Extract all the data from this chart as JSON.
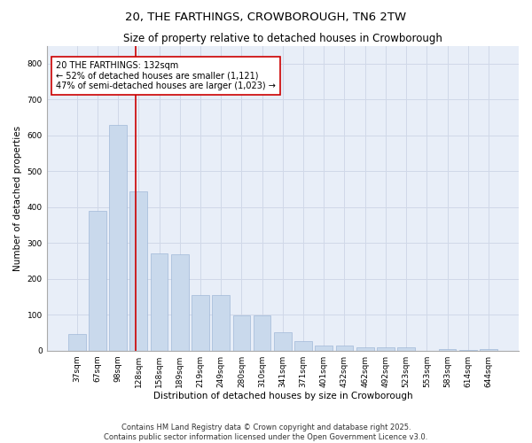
{
  "title": "20, THE FARTHINGS, CROWBOROUGH, TN6 2TW",
  "subtitle": "Size of property relative to detached houses in Crowborough",
  "xlabel": "Distribution of detached houses by size in Crowborough",
  "ylabel": "Number of detached properties",
  "categories": [
    "37sqm",
    "67sqm",
    "98sqm",
    "128sqm",
    "158sqm",
    "189sqm",
    "219sqm",
    "249sqm",
    "280sqm",
    "310sqm",
    "341sqm",
    "371sqm",
    "401sqm",
    "432sqm",
    "462sqm",
    "492sqm",
    "523sqm",
    "553sqm",
    "583sqm",
    "614sqm",
    "644sqm"
  ],
  "values": [
    45,
    390,
    630,
    445,
    270,
    268,
    155,
    154,
    97,
    97,
    50,
    26,
    15,
    15,
    10,
    10,
    10,
    0,
    5,
    1,
    3
  ],
  "bar_color": "#c9d9ec",
  "bar_edge_color": "#a0b8d8",
  "vline_color": "#cc0000",
  "annotation_line1": "20 THE FARTHINGS: 132sqm",
  "annotation_line2": "← 52% of detached houses are smaller (1,121)",
  "annotation_line3": "47% of semi-detached houses are larger (1,023) →",
  "annotation_box_color": "#ffffff",
  "annotation_box_edge": "#cc0000",
  "ylim": [
    0,
    850
  ],
  "yticks": [
    0,
    100,
    200,
    300,
    400,
    500,
    600,
    700,
    800
  ],
  "grid_color": "#d0d8e8",
  "background_color": "#e8eef8",
  "footer_line1": "Contains HM Land Registry data © Crown copyright and database right 2025.",
  "footer_line2": "Contains public sector information licensed under the Open Government Licence v3.0.",
  "title_fontsize": 9.5,
  "subtitle_fontsize": 8.5,
  "axis_label_fontsize": 7.5,
  "tick_fontsize": 6.5,
  "annotation_fontsize": 7,
  "footer_fontsize": 6
}
